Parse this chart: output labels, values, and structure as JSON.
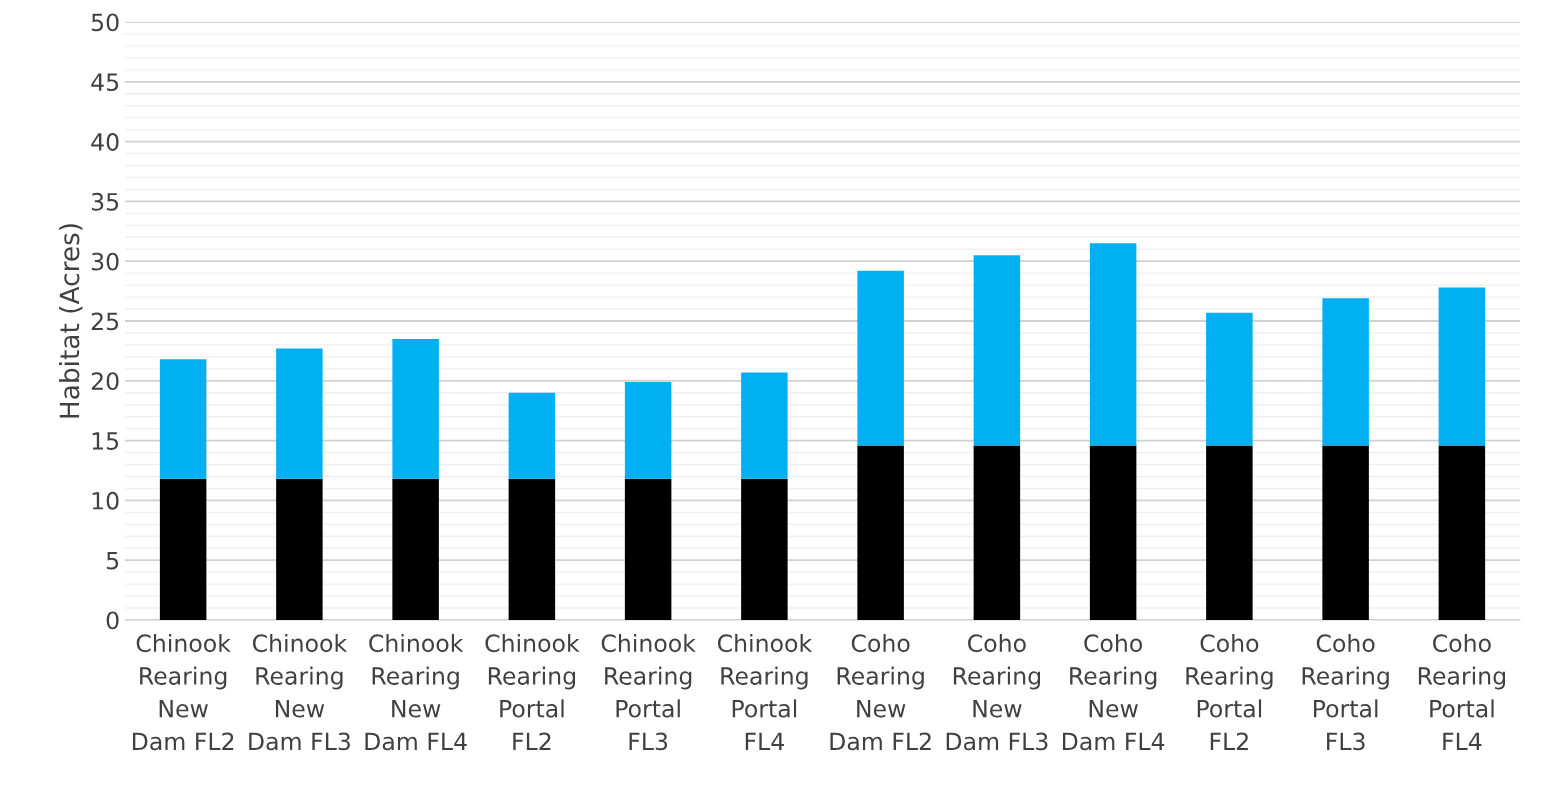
{
  "chart_data": {
    "type": "bar",
    "stacked": true,
    "ylabel": "Habitat (Acres)",
    "categories": [
      "Chinook\nRearing\nNew\nDam FL2",
      "Chinook\nRearing\nNew\nDam FL3",
      "Chinook\nRearing\nNew\nDam FL4",
      "Chinook\nRearing\nPortal\nFL2",
      "Chinook\nRearing\nPortal\nFL3",
      "Chinook\nRearing\nPortal\nFL4",
      "Coho\nRearing\nNew\nDam FL2",
      "Coho\nRearing\nNew\nDam FL3",
      "Coho\nRearing\nNew\nDam FL4",
      "Coho\nRearing\nPortal\nFL2",
      "Coho\nRearing\nPortal\nFL3",
      "Coho\nRearing\nPortal\nFL4"
    ],
    "series": [
      {
        "color": "#000000",
        "values": [
          11.8,
          11.8,
          11.8,
          11.8,
          11.8,
          11.8,
          14.6,
          14.6,
          14.6,
          14.6,
          14.6,
          14.6
        ]
      },
      {
        "color": "#00b0f0",
        "values": [
          10.0,
          10.9,
          11.7,
          7.2,
          8.1,
          8.9,
          14.6,
          15.9,
          16.9,
          11.1,
          12.3,
          13.2
        ]
      }
    ],
    "ylim": [
      0,
      50
    ],
    "yticks": [
      0,
      {
        "value": 1,
        "label": null
      },
      {
        "value": 2,
        "label": null
      },
      {
        "value": 3,
        "label": null
      },
      {
        "value": 4,
        "label": null
      },
      5,
      {
        "value": 6,
        "label": null
      },
      {
        "value": 7,
        "label": null
      },
      {
        "value": 8,
        "label": null
      },
      {
        "value": 9,
        "label": null
      },
      10,
      {
        "value": 11,
        "label": null
      },
      {
        "value": 12,
        "label": null
      },
      {
        "value": 13,
        "label": null
      },
      {
        "value": 14,
        "label": null
      },
      15,
      {
        "value": 16,
        "label": null
      },
      {
        "value": 17,
        "label": null
      },
      {
        "value": 18,
        "label": null
      },
      {
        "value": 19,
        "label": null
      },
      20,
      {
        "value": 21,
        "label": null
      },
      {
        "value": 22,
        "label": null
      },
      {
        "value": 23,
        "label": null
      },
      {
        "value": 24,
        "label": null
      },
      25,
      {
        "value": 26,
        "label": null
      },
      {
        "value": 27,
        "label": null
      },
      {
        "value": 28,
        "label": null
      },
      {
        "value": 29,
        "label": null
      },
      30,
      {
        "value": 31,
        "label": null
      },
      {
        "value": 32,
        "label": null
      },
      {
        "value": 33,
        "label": null
      },
      {
        "value": 34,
        "label": null
      },
      35,
      {
        "value": 36,
        "label": null
      },
      {
        "value": 37,
        "label": null
      },
      {
        "value": 38,
        "label": null
      },
      {
        "value": 39,
        "label": null
      },
      40,
      {
        "value": 41,
        "label": null
      },
      {
        "value": 42,
        "label": null
      },
      {
        "value": 43,
        "label": null
      },
      {
        "value": 44,
        "label": null
      },
      45,
      {
        "value": 46,
        "label": null
      },
      {
        "value": 47,
        "label": null
      },
      {
        "value": 48,
        "label": null
      },
      {
        "value": 49,
        "label": null
      },
      50
    ],
    "grid": "y",
    "legend": false
  }
}
